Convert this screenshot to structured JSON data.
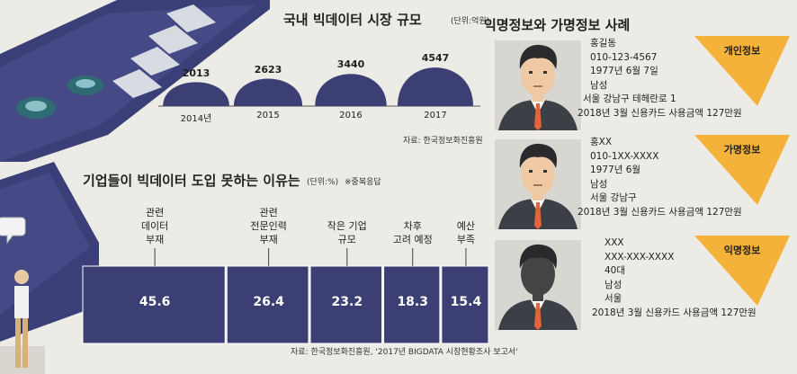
{
  "colors": {
    "navy": "#3c3f74",
    "navy_dark": "#2e3060",
    "tag_orange": "#f4b23a",
    "bg": "#ecebe6",
    "illus_teal": "#2f6b72"
  },
  "market": {
    "title": "국내 빅데이터 시장 규모",
    "unit": "(단위:억원)",
    "source": "자료: 한국정보화진흥원"
  },
  "reasons": {
    "title": "기업들이 빅데이터 도입 못하는 이유는",
    "unit": "(단위:%)",
    "note": "※중복응답",
    "labels": [
      "관련\n데이터\n부재",
      "관련\n전문인력\n부재",
      "작은 기업\n규모",
      "차후\n고려 예정",
      "예산\n부족"
    ],
    "source": "자료: 한국정보화진흥원, '2017년 BIGDATA 시장현황조사 보고서'"
  },
  "chart_data": [
    {
      "type": "area",
      "title": "국내 빅데이터 시장 규모",
      "unit": "(단위:억원)",
      "categories": [
        "2014년",
        "2015",
        "2016",
        "2017"
      ],
      "value_labels": [
        "2013",
        "2623",
        "3440",
        "4547"
      ],
      "values": [
        2013,
        2623,
        3440,
        4547
      ]
    },
    {
      "type": "bar",
      "title": "기업들이 빅데이터 도입 못하는 이유는",
      "unit": "(단위:%)",
      "categories": [
        "관련 데이터 부재",
        "관련 전문인력 부재",
        "작은 기업 규모",
        "차후 고려 예정",
        "예산 부족"
      ],
      "value_labels": [
        "45.6",
        "26.4",
        "23.2",
        "18.3",
        "15.4"
      ],
      "values": [
        45.6,
        26.4,
        23.2,
        18.3,
        15.4
      ]
    }
  ],
  "privacy": {
    "title": "익명정보와 가명정보 사례",
    "cases": [
      {
        "tag": "개인정보",
        "lines": [
          "홍길동",
          "010-123-4567",
          "1977년 6월 7일",
          "남성",
          "서울 강남구 테헤란로 1",
          "2018년 3월 신용카드 사용금액 127만원"
        ]
      },
      {
        "tag": "가명정보",
        "lines": [
          "홍XX",
          "010-1XX-XXXX",
          "1977년 6월",
          "남성",
          "서울 강남구",
          "2018년 3월 신용카드 사용금액 127만원"
        ]
      },
      {
        "tag": "익명정보",
        "lines": [
          "XXX",
          "XXX-XXX-XXXX",
          "40대",
          "남성",
          "서울",
          "2018년 3월 신용카드 사용금액 127만원"
        ]
      }
    ]
  }
}
